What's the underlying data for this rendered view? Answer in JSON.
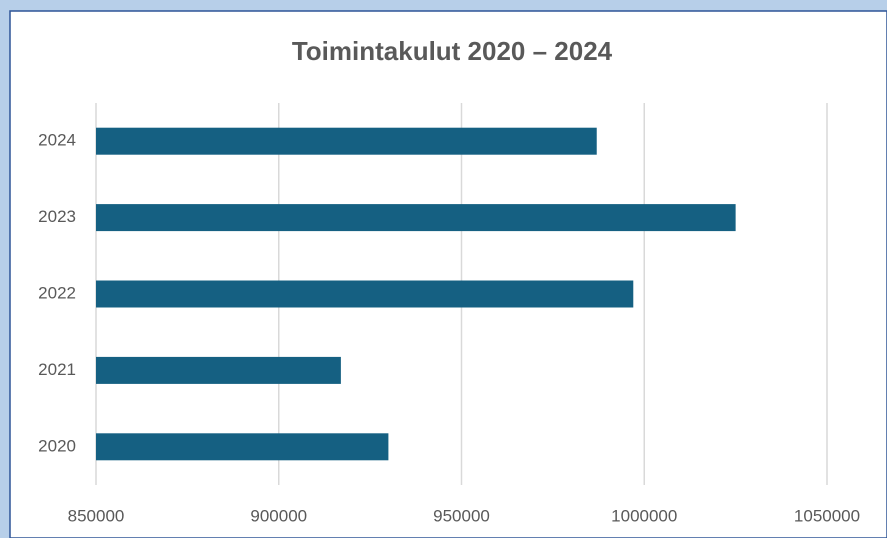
{
  "chart_data": {
    "type": "bar",
    "orientation": "horizontal",
    "title": "Toimintakulut 2020 – 2024",
    "categories": [
      "2020",
      "2021",
      "2022",
      "2023",
      "2024"
    ],
    "values": [
      930000,
      917000,
      997000,
      1025000,
      987000
    ],
    "color": "#156082",
    "xlim": [
      850000,
      1050000
    ],
    "xticks": [
      850000,
      900000,
      950000,
      1000000,
      1050000
    ],
    "grid": true
  }
}
